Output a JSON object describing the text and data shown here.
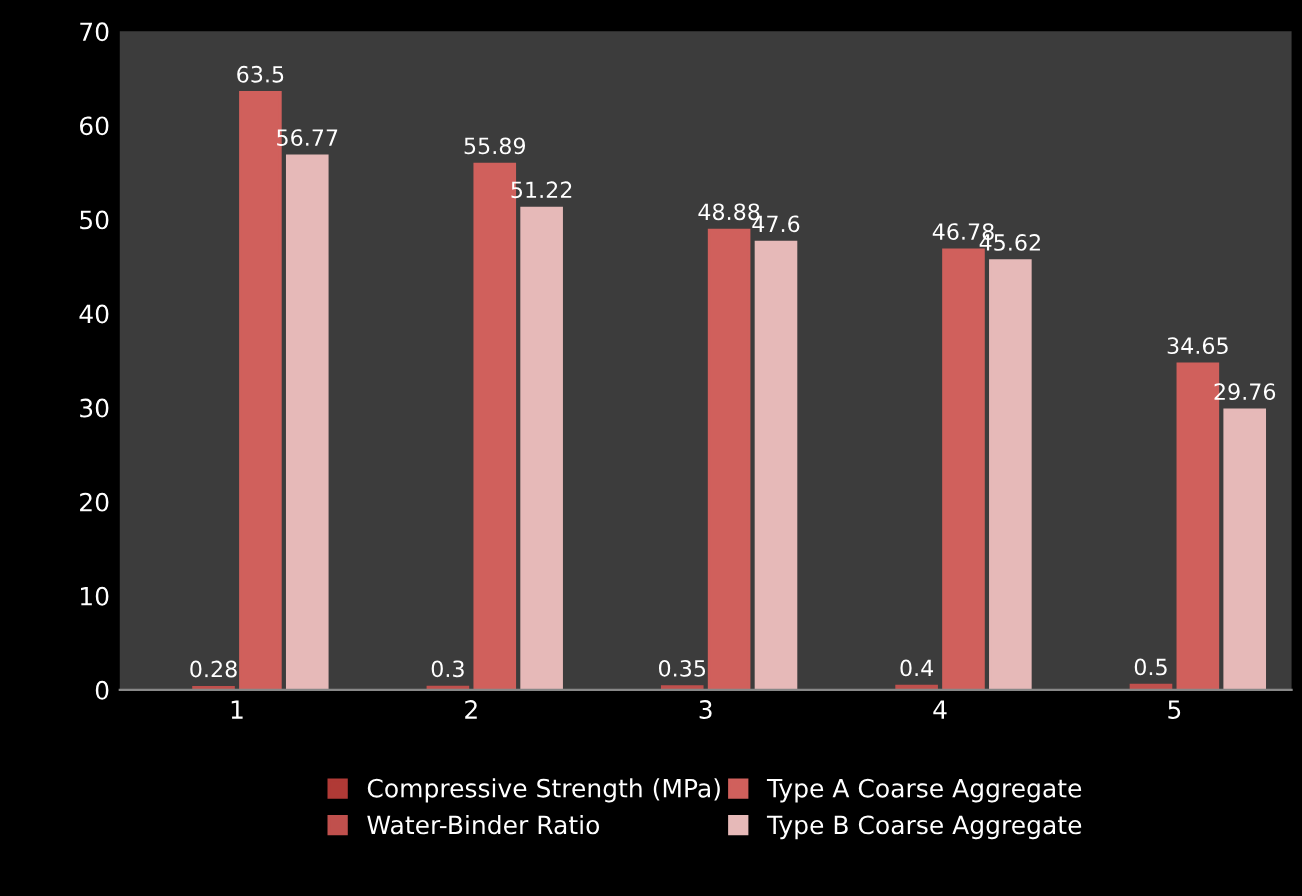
{
  "chart_data": {
    "type": "bar",
    "categories": [
      "1",
      "2",
      "3",
      "4",
      "5"
    ],
    "series": [
      {
        "name": "Compressive Strength (MPa)",
        "color": "#b03a36",
        "values": [
          null,
          null,
          null,
          null,
          null
        ]
      },
      {
        "name": "Water-Binder Ratio",
        "color": "#c0504d",
        "values": [
          0.28,
          0.3,
          0.35,
          0.4,
          0.5
        ]
      },
      {
        "name": "Type A Coarse Aggregate",
        "color": "#d0605c",
        "values": [
          63.5,
          55.89,
          48.88,
          46.78,
          34.65
        ]
      },
      {
        "name": "Type B Coarse Aggregate",
        "color": "#e6b9b8",
        "values": [
          56.77,
          51.22,
          47.6,
          45.62,
          29.76
        ]
      }
    ],
    "ylim": [
      0,
      70
    ],
    "yticks": [
      0,
      10,
      20,
      30,
      40,
      50,
      60,
      70
    ],
    "grid": false,
    "legend": "bottom",
    "data_labels": true
  }
}
